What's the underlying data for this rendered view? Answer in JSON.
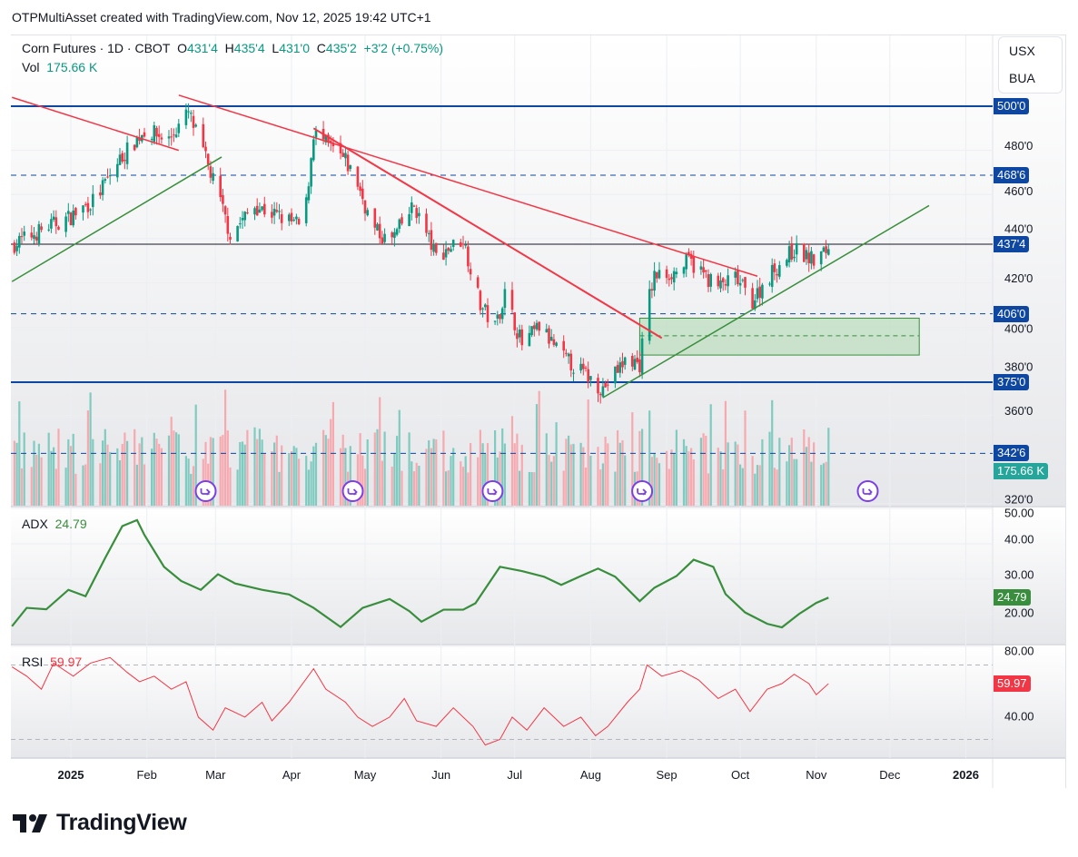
{
  "credit": "OTPMultiAsset created with TradingView.com, Nov 12, 2025 19:42 UTC+1",
  "legend": {
    "symbol": "Corn Futures · 1D · CBOT",
    "o_label": "O",
    "o": "431'4",
    "h_label": "H",
    "h": "435'4",
    "l_label": "L",
    "l": "431'0",
    "c_label": "C",
    "c": "435'2",
    "change": "+3'2 (+0.75%)",
    "vol_label": "Vol",
    "vol": "175.66 K"
  },
  "currency": {
    "line1": "USX",
    "line2": "BUA"
  },
  "logo": "TradingView",
  "colors": {
    "up": "#089981",
    "down": "#f23645",
    "level": "#0d47a1",
    "green_line": "#388e3c",
    "red_line": "#f23645",
    "adx": "#388e3c",
    "rsi": "#f23645",
    "zone": "#a5d6a7"
  },
  "chart_data": [
    {
      "type": "candlestick",
      "title": "Corn Futures · 1D · CBOT",
      "x_unit": "days since 2025-01-01",
      "ylim": [
        320,
        510
      ],
      "y_ticks": [
        {
          "v": 480,
          "t": "480'0"
        },
        {
          "v": 460,
          "t": "460'0"
        },
        {
          "v": 440,
          "t": "440'0"
        },
        {
          "v": 420,
          "t": "420'0"
        },
        {
          "v": 400,
          "t": "400'0"
        },
        {
          "v": 380,
          "t": "380'0"
        },
        {
          "v": 360,
          "t": "360'0"
        },
        {
          "v": 320,
          "t": "320'0"
        }
      ],
      "x_ticks": [
        {
          "d": 0,
          "t": "2025"
        },
        {
          "d": 31,
          "t": "Feb"
        },
        {
          "d": 59,
          "t": "Mar"
        },
        {
          "d": 90,
          "t": "Apr"
        },
        {
          "d": 120,
          "t": "May"
        },
        {
          "d": 151,
          "t": "Jun"
        },
        {
          "d": 181,
          "t": "Jul"
        },
        {
          "d": 212,
          "t": "Aug"
        },
        {
          "d": 243,
          "t": "Sep"
        },
        {
          "d": 273,
          "t": "Oct"
        },
        {
          "d": 304,
          "t": "Nov"
        },
        {
          "d": 334,
          "t": "Dec"
        },
        {
          "d": 365,
          "t": "2026"
        }
      ],
      "close_keypoints": [
        [
          -24,
          437
        ],
        [
          -10,
          445
        ],
        [
          0,
          450
        ],
        [
          10,
          458
        ],
        [
          20,
          476
        ],
        [
          30,
          489
        ],
        [
          40,
          485
        ],
        [
          48,
          497
        ],
        [
          55,
          476
        ],
        [
          60,
          460
        ],
        [
          65,
          442
        ],
        [
          75,
          455
        ],
        [
          85,
          450
        ],
        [
          95,
          445
        ],
        [
          99,
          488
        ],
        [
          112,
          475
        ],
        [
          117,
          465
        ],
        [
          123,
          445
        ],
        [
          130,
          438
        ],
        [
          140,
          455
        ],
        [
          149,
          432
        ],
        [
          160,
          440
        ],
        [
          167,
          410
        ],
        [
          173,
          400
        ],
        [
          177,
          415
        ],
        [
          184,
          392
        ],
        [
          191,
          400
        ],
        [
          201,
          386
        ],
        [
          208,
          380
        ],
        [
          217,
          372
        ],
        [
          227,
          386
        ],
        [
          232,
          383
        ],
        [
          235,
          410
        ],
        [
          238,
          423
        ],
        [
          247,
          425
        ],
        [
          252,
          430
        ],
        [
          264,
          418
        ],
        [
          271,
          422
        ],
        [
          278,
          412
        ],
        [
          286,
          425
        ],
        [
          295,
          435
        ],
        [
          303,
          430
        ],
        [
          309,
          435.25
        ]
      ],
      "last_close": 435.25,
      "levels": [
        {
          "price": 500,
          "label": "500'0",
          "style": "solid"
        },
        {
          "price": 468.75,
          "label": "468'6",
          "style": "dashed"
        },
        {
          "price": 437.5,
          "label": "437'4",
          "style": "thin"
        },
        {
          "price": 406,
          "label": "406'0",
          "style": "dashed"
        },
        {
          "price": 375,
          "label": "375'0",
          "style": "solid"
        },
        {
          "price": 342.75,
          "label": "342'6",
          "style": "dashed"
        }
      ],
      "trendlines": [
        {
          "color": "red",
          "from": [
            -24,
            504
          ],
          "to": [
            44,
            480
          ]
        },
        {
          "color": "green",
          "from": [
            -24,
            420.6
          ],
          "to": [
            61.5,
            477
          ]
        },
        {
          "color": "red",
          "from": [
            44,
            505
          ],
          "to": [
            280,
            423
          ]
        },
        {
          "color": "red",
          "from": [
            99,
            490
          ],
          "to": [
            241,
            395
          ],
          "bold": true
        },
        {
          "color": "green",
          "from": [
            217,
            368
          ],
          "to": [
            350,
            455
          ]
        }
      ],
      "zone": {
        "from_day": 232,
        "to_day": 346,
        "top": 404,
        "bottom": 387.3,
        "mid": 396
      },
      "event_days": [
        55,
        115,
        172,
        233,
        325
      ]
    },
    {
      "type": "bar",
      "title": "Vol",
      "last_value": "175.66 K"
    },
    {
      "type": "line",
      "title": "ADX",
      "last_value": "24.79",
      "y_ticks": [
        {
          "v": 50,
          "t": "50.00"
        },
        {
          "v": 40,
          "t": "40.00"
        },
        {
          "v": 30,
          "t": "30.00"
        },
        {
          "v": 20,
          "t": "20.00"
        }
      ],
      "points": [
        [
          -24,
          16.7
        ],
        [
          -18,
          21.9
        ],
        [
          -10,
          21.5
        ],
        [
          -1,
          27
        ],
        [
          6,
          25.2
        ],
        [
          14,
          36
        ],
        [
          21,
          45
        ],
        [
          27,
          46.7
        ],
        [
          30,
          42.5
        ],
        [
          38,
          33.5
        ],
        [
          45,
          29.5
        ],
        [
          53,
          27
        ],
        [
          60,
          31.4
        ],
        [
          67,
          28.8
        ],
        [
          78,
          27
        ],
        [
          89,
          25.7
        ],
        [
          99,
          21.9
        ],
        [
          110,
          16.5
        ],
        [
          119,
          21.9
        ],
        [
          130,
          24.4
        ],
        [
          138,
          21
        ],
        [
          143,
          18
        ],
        [
          152,
          21.4
        ],
        [
          160,
          21.4
        ],
        [
          165,
          23.2
        ],
        [
          175,
          33.5
        ],
        [
          184,
          32.3
        ],
        [
          193,
          30.7
        ],
        [
          200,
          28.4
        ],
        [
          208,
          30.9
        ],
        [
          215,
          33
        ],
        [
          222,
          30.7
        ],
        [
          232,
          23.8
        ],
        [
          238,
          27.6
        ],
        [
          247,
          30.9
        ],
        [
          254,
          35.5
        ],
        [
          262,
          33.5
        ],
        [
          267,
          25.8
        ],
        [
          275,
          20.6
        ],
        [
          284,
          17.4
        ],
        [
          290,
          16.4
        ],
        [
          297,
          20.2
        ],
        [
          304,
          23.3
        ],
        [
          309,
          24.79
        ]
      ]
    },
    {
      "type": "line",
      "title": "RSI",
      "last_value": "59.97",
      "y_ticks": [
        {
          "v": 80,
          "t": "80.00"
        },
        {
          "v": 40,
          "t": "40.00"
        }
      ],
      "bands": [
        70,
        30
      ],
      "points": [
        [
          -24,
          69
        ],
        [
          -18,
          64
        ],
        [
          -12,
          57
        ],
        [
          -7,
          71
        ],
        [
          1,
          64
        ],
        [
          8,
          71
        ],
        [
          16,
          74
        ],
        [
          23,
          66
        ],
        [
          28,
          61
        ],
        [
          34,
          64
        ],
        [
          41,
          57
        ],
        [
          47,
          61
        ],
        [
          52,
          42
        ],
        [
          58,
          35
        ],
        [
          63,
          47
        ],
        [
          71,
          42
        ],
        [
          78,
          50
        ],
        [
          82,
          40
        ],
        [
          89,
          50
        ],
        [
          99,
          68
        ],
        [
          104,
          57
        ],
        [
          112,
          50
        ],
        [
          117,
          42
        ],
        [
          123,
          37
        ],
        [
          130,
          42
        ],
        [
          136,
          52
        ],
        [
          141,
          40
        ],
        [
          149,
          37
        ],
        [
          156,
          47
        ],
        [
          164,
          37
        ],
        [
          169,
          27
        ],
        [
          175,
          30
        ],
        [
          180,
          42
        ],
        [
          186,
          35
        ],
        [
          193,
          47
        ],
        [
          201,
          37
        ],
        [
          208,
          42
        ],
        [
          214,
          32
        ],
        [
          219,
          37
        ],
        [
          227,
          50
        ],
        [
          232,
          57
        ],
        [
          235,
          70
        ],
        [
          241,
          64
        ],
        [
          249,
          67
        ],
        [
          256,
          62
        ],
        [
          264,
          52
        ],
        [
          271,
          57
        ],
        [
          277,
          45
        ],
        [
          284,
          57
        ],
        [
          290,
          60
        ],
        [
          295,
          65
        ],
        [
          301,
          60
        ],
        [
          304,
          54
        ],
        [
          309,
          59.97
        ]
      ]
    }
  ]
}
